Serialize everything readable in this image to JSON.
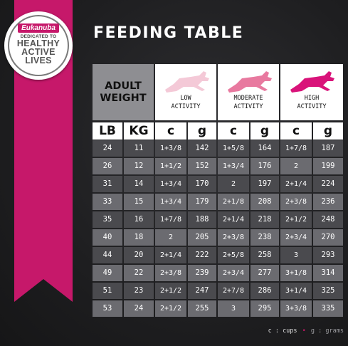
{
  "brand": {
    "logo_text": "Eukanuba",
    "dedicated": "DEDICATED TO",
    "line1": "HEALTHY",
    "line2": "ACTIVE",
    "line3": "LIVES"
  },
  "title": "FEEDING TABLE",
  "header": {
    "adult_weight_line1": "ADULT",
    "adult_weight_line2": "WEIGHT",
    "activities": [
      {
        "line1": "LOW",
        "line2": "ACTIVITY",
        "color": "#f4c9d7"
      },
      {
        "line1": "MODERATE",
        "line2": "ACTIVITY",
        "color": "#e8799f"
      },
      {
        "line1": "HIGH",
        "line2": "ACTIVITY",
        "color": "#d9137a"
      }
    ]
  },
  "subheaders": [
    "LB",
    "KG",
    "c",
    "g",
    "c",
    "g",
    "c",
    "g"
  ],
  "rows": [
    [
      "24",
      "11",
      "1+3/8",
      "142",
      "1+5/8",
      "164",
      "1+7/8",
      "187"
    ],
    [
      "26",
      "12",
      "1+1/2",
      "152",
      "1+3/4",
      "176",
      "2",
      "199"
    ],
    [
      "31",
      "14",
      "1+3/4",
      "170",
      "2",
      "197",
      "2+1/4",
      "224"
    ],
    [
      "33",
      "15",
      "1+3/4",
      "179",
      "2+1/8",
      "208",
      "2+3/8",
      "236"
    ],
    [
      "35",
      "16",
      "1+7/8",
      "188",
      "2+1/4",
      "218",
      "2+1/2",
      "248"
    ],
    [
      "40",
      "18",
      "2",
      "205",
      "2+3/8",
      "238",
      "2+3/4",
      "270"
    ],
    [
      "44",
      "20",
      "2+1/4",
      "222",
      "2+5/8",
      "258",
      "3",
      "293"
    ],
    [
      "49",
      "22",
      "2+3/8",
      "239",
      "2+3/4",
      "277",
      "3+1/8",
      "314"
    ],
    [
      "51",
      "23",
      "2+1/2",
      "247",
      "2+7/8",
      "286",
      "3+1/4",
      "325"
    ],
    [
      "53",
      "24",
      "2+1/2",
      "255",
      "3",
      "295",
      "3+3/8",
      "335"
    ]
  ],
  "legend": {
    "c_key": "c",
    "c_text": ": cups",
    "separator": "•",
    "g_key": "g",
    "g_text": ": grams"
  },
  "colors": {
    "accent": "#c6186a",
    "row_dark": "#4a4a4e",
    "row_light": "#6b6b70"
  }
}
